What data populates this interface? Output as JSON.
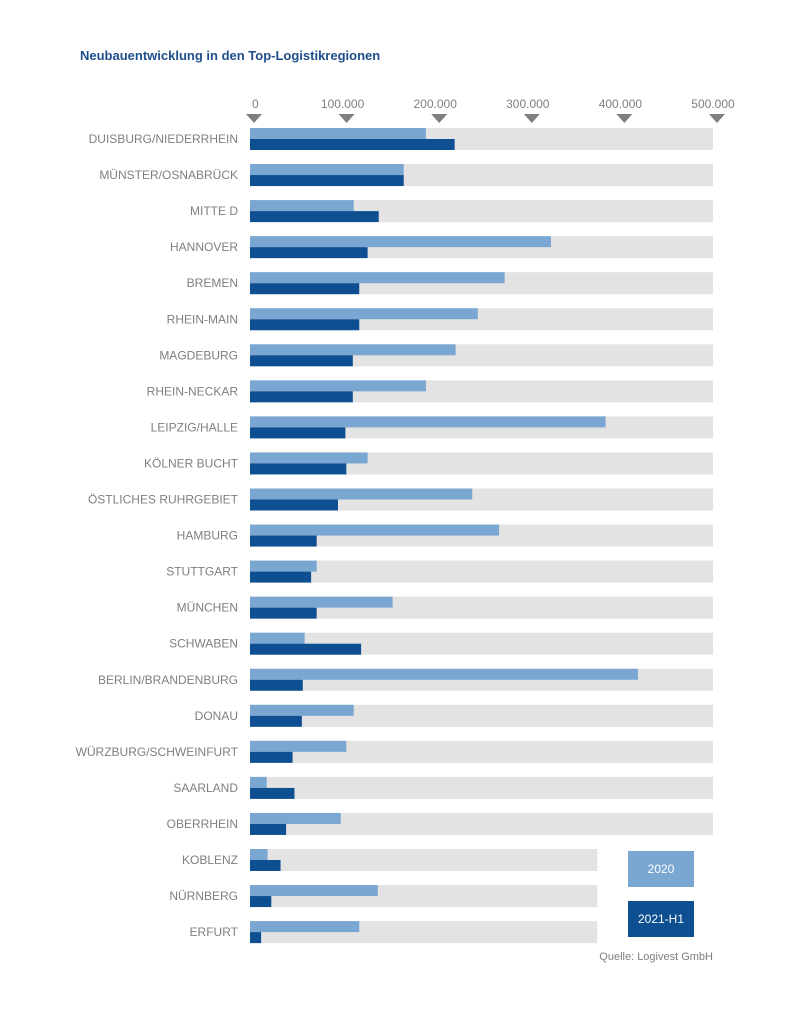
{
  "chart_data": {
    "type": "bar",
    "orientation": "horizontal",
    "title": "Neubauentwicklung in den Top-Logistikregionen",
    "xlim": [
      0,
      500000
    ],
    "x_ticks": [
      "0",
      "100.000",
      "200.000",
      "300.000",
      "400.000",
      "500.000"
    ],
    "categories": [
      "DUISBURG/NIEDERRHEIN",
      "MÜNSTER/OSNABRÜCK",
      "MITTE D",
      "HANNOVER",
      "BREMEN",
      "RHEIN-MAIN",
      "MAGDEBURG",
      "RHEIN-NECKAR",
      "LEIPZIG/HALLE",
      "KÖLNER BUCHT",
      "ÖSTLICHES RUHRGEBIET",
      "HAMBURG",
      "STUTTGART",
      "MÜNCHEN",
      "SCHWABEN",
      "BERLIN/BRANDENBURG",
      "DONAU",
      "WÜRZBURG/SCHWEINFURT",
      "SAARLAND",
      "OBERRHEIN",
      "KOBLENZ",
      "NÜRNBERG",
      "ERFURT"
    ],
    "background_extent": [
      500000,
      500000,
      500000,
      500000,
      500000,
      500000,
      500000,
      500000,
      500000,
      500000,
      500000,
      500000,
      500000,
      500000,
      500000,
      500000,
      500000,
      500000,
      500000,
      500000,
      375000,
      375000,
      375000
    ],
    "series": [
      {
        "name": "2020",
        "color": "#7aa6d2",
        "values": [
          190000,
          166000,
          112000,
          325000,
          275000,
          246000,
          222000,
          190000,
          384000,
          127000,
          240000,
          269000,
          72000,
          154000,
          59000,
          419000,
          112000,
          104000,
          18000,
          98000,
          19000,
          138000,
          118000
        ]
      },
      {
        "name": "2021-H1",
        "color": "#0d4f91",
        "values": [
          221000,
          166000,
          139000,
          127000,
          118000,
          118000,
          111000,
          111000,
          103000,
          104000,
          95000,
          72000,
          66000,
          72000,
          120000,
          57000,
          56000,
          46000,
          48000,
          39000,
          33000,
          23000,
          12000
        ]
      }
    ],
    "background_color": "#e3e3e3",
    "legend_position": "bottom-right"
  },
  "source": "Quelle: Logivest GmbH"
}
